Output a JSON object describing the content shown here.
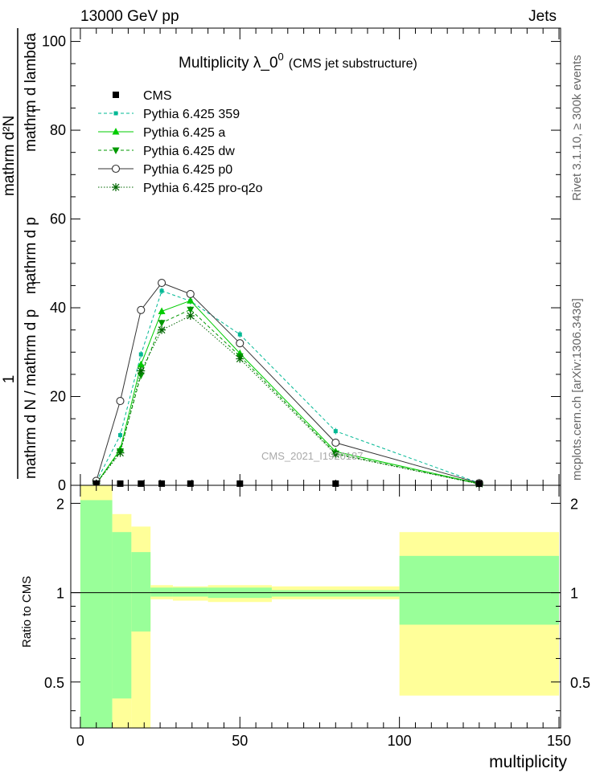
{
  "header": {
    "left": "13000 GeV pp",
    "right": "Jets"
  },
  "side_labels": {
    "events": "Rivet 3.1.10, ≥ 300k events",
    "site": "mcplots.cern.ch [arXiv:1306.3436]"
  },
  "watermark": "CMS_2021_I1920187",
  "colors": {
    "data": "#000000",
    "p359": "#00b894",
    "pa": "#00cc00",
    "pdw": "#009900",
    "pp0": "#333333",
    "pq2o": "#006600",
    "band_inner": "#99ff99",
    "band_outer": "#ffff99"
  },
  "chart_data": [
    {
      "type": "line",
      "title": "Multiplicity  λ_0⁰ (CMS jet substructure)",
      "title_main": "Multiplicity  λ_0",
      "title_sup": "0",
      "title_sub": "(CMS jet substructure)",
      "ylabel_top": "mathrm d²N",
      "ylabel_top_bottom": "mathrm d p",
      "ylabel_bottom": "mathrm d N / mathrm d p",
      "ylabel_bottom_tail": "mathrm d lambda",
      "ylabel_one": "1",
      "xlim": [
        -3,
        150.5
      ],
      "ylim": [
        0,
        103
      ],
      "yticks": [
        0,
        20,
        40,
        60,
        80,
        100
      ],
      "xticks": [
        0,
        50,
        100,
        150
      ],
      "legend": [
        {
          "label": "CMS",
          "key": "data",
          "marker": "square",
          "line": "none"
        },
        {
          "label": "Pythia 6.425 359",
          "key": "p359",
          "marker": "smallsquare",
          "line": "dashed"
        },
        {
          "label": "Pythia 6.425 a",
          "key": "pa",
          "marker": "triangle-up",
          "line": "solid"
        },
        {
          "label": "Pythia 6.425 dw",
          "key": "pdw",
          "marker": "triangle-down",
          "line": "dashed"
        },
        {
          "label": "Pythia 6.425 p0",
          "key": "pp0",
          "marker": "circle",
          "line": "solid"
        },
        {
          "label": "Pythia 6.425 pro-q2o",
          "key": "pq2o",
          "marker": "star",
          "line": "dotted"
        }
      ],
      "data_points": {
        "x": [
          5,
          12.5,
          19,
          25.5,
          34.5,
          50,
          80,
          125
        ],
        "y": [
          0.2,
          0.2,
          0.2,
          0.2,
          0.2,
          0.2,
          0.2,
          0.2
        ]
      },
      "series": [
        {
          "key": "p359",
          "x": [
            5,
            12.5,
            19,
            25.5,
            34.5,
            50,
            80,
            125
          ],
          "y": [
            0.8,
            11.3,
            29.5,
            43.8,
            41.5,
            34.0,
            12.2,
            0.5
          ]
        },
        {
          "key": "pa",
          "x": [
            5,
            12.5,
            19,
            25.5,
            34.5,
            50,
            80,
            125
          ],
          "y": [
            0.4,
            8.1,
            27.2,
            39.2,
            41.6,
            29.7,
            7.6,
            0.4
          ]
        },
        {
          "key": "pdw",
          "x": [
            5,
            12.5,
            19,
            25.5,
            34.5,
            50,
            80,
            125
          ],
          "y": [
            0.4,
            7.7,
            24.8,
            36.6,
            39.6,
            29.1,
            7.2,
            0.3
          ]
        },
        {
          "key": "pp0",
          "x": [
            5,
            12.5,
            19,
            25.5,
            34.5,
            50,
            80,
            125
          ],
          "y": [
            1.0,
            19.0,
            39.5,
            45.6,
            43.1,
            32.0,
            9.6,
            0.5
          ]
        },
        {
          "key": "pq2o",
          "x": [
            5,
            12.5,
            19,
            25.5,
            34.5,
            50,
            80,
            125
          ],
          "y": [
            0.4,
            7.3,
            25.8,
            35.0,
            38.2,
            28.5,
            7.0,
            0.3
          ]
        }
      ]
    },
    {
      "type": "area",
      "ylabel": "Ratio to CMS",
      "xlabel": "multiplicity",
      "xlim": [
        -3,
        150.5
      ],
      "ylim": [
        0.35,
        2.3
      ],
      "yticks": [
        0.5,
        1,
        2
      ],
      "ytick_labels": [
        "0.5",
        "1",
        "2"
      ],
      "xticks": [
        0,
        50,
        100,
        150
      ],
      "reference_line": 1,
      "bins": [
        {
          "x0": 0,
          "x1": 10,
          "inner": [
            0.3,
            2.05
          ],
          "outer": [
            0.3,
            2.3
          ]
        },
        {
          "x0": 10,
          "x1": 16,
          "inner": [
            0.44,
            1.6
          ],
          "outer": [
            0.35,
            1.84
          ]
        },
        {
          "x0": 16,
          "x1": 22,
          "inner": [
            0.74,
            1.37
          ],
          "outer": [
            0.35,
            1.67
          ]
        },
        {
          "x0": 22,
          "x1": 29,
          "inner": [
            0.97,
            1.04
          ],
          "outer": [
            0.95,
            1.06
          ]
        },
        {
          "x0": 29,
          "x1": 40,
          "inner": [
            0.97,
            1.04
          ],
          "outer": [
            0.94,
            1.05
          ]
        },
        {
          "x0": 40,
          "x1": 60,
          "inner": [
            0.96,
            1.04
          ],
          "outer": [
            0.93,
            1.06
          ]
        },
        {
          "x0": 60,
          "x1": 100,
          "inner": [
            0.97,
            1.02
          ],
          "outer": [
            0.95,
            1.05
          ]
        },
        {
          "x0": 100,
          "x1": 150,
          "inner": [
            0.78,
            1.33
          ],
          "outer": [
            0.45,
            1.6
          ]
        }
      ]
    }
  ]
}
